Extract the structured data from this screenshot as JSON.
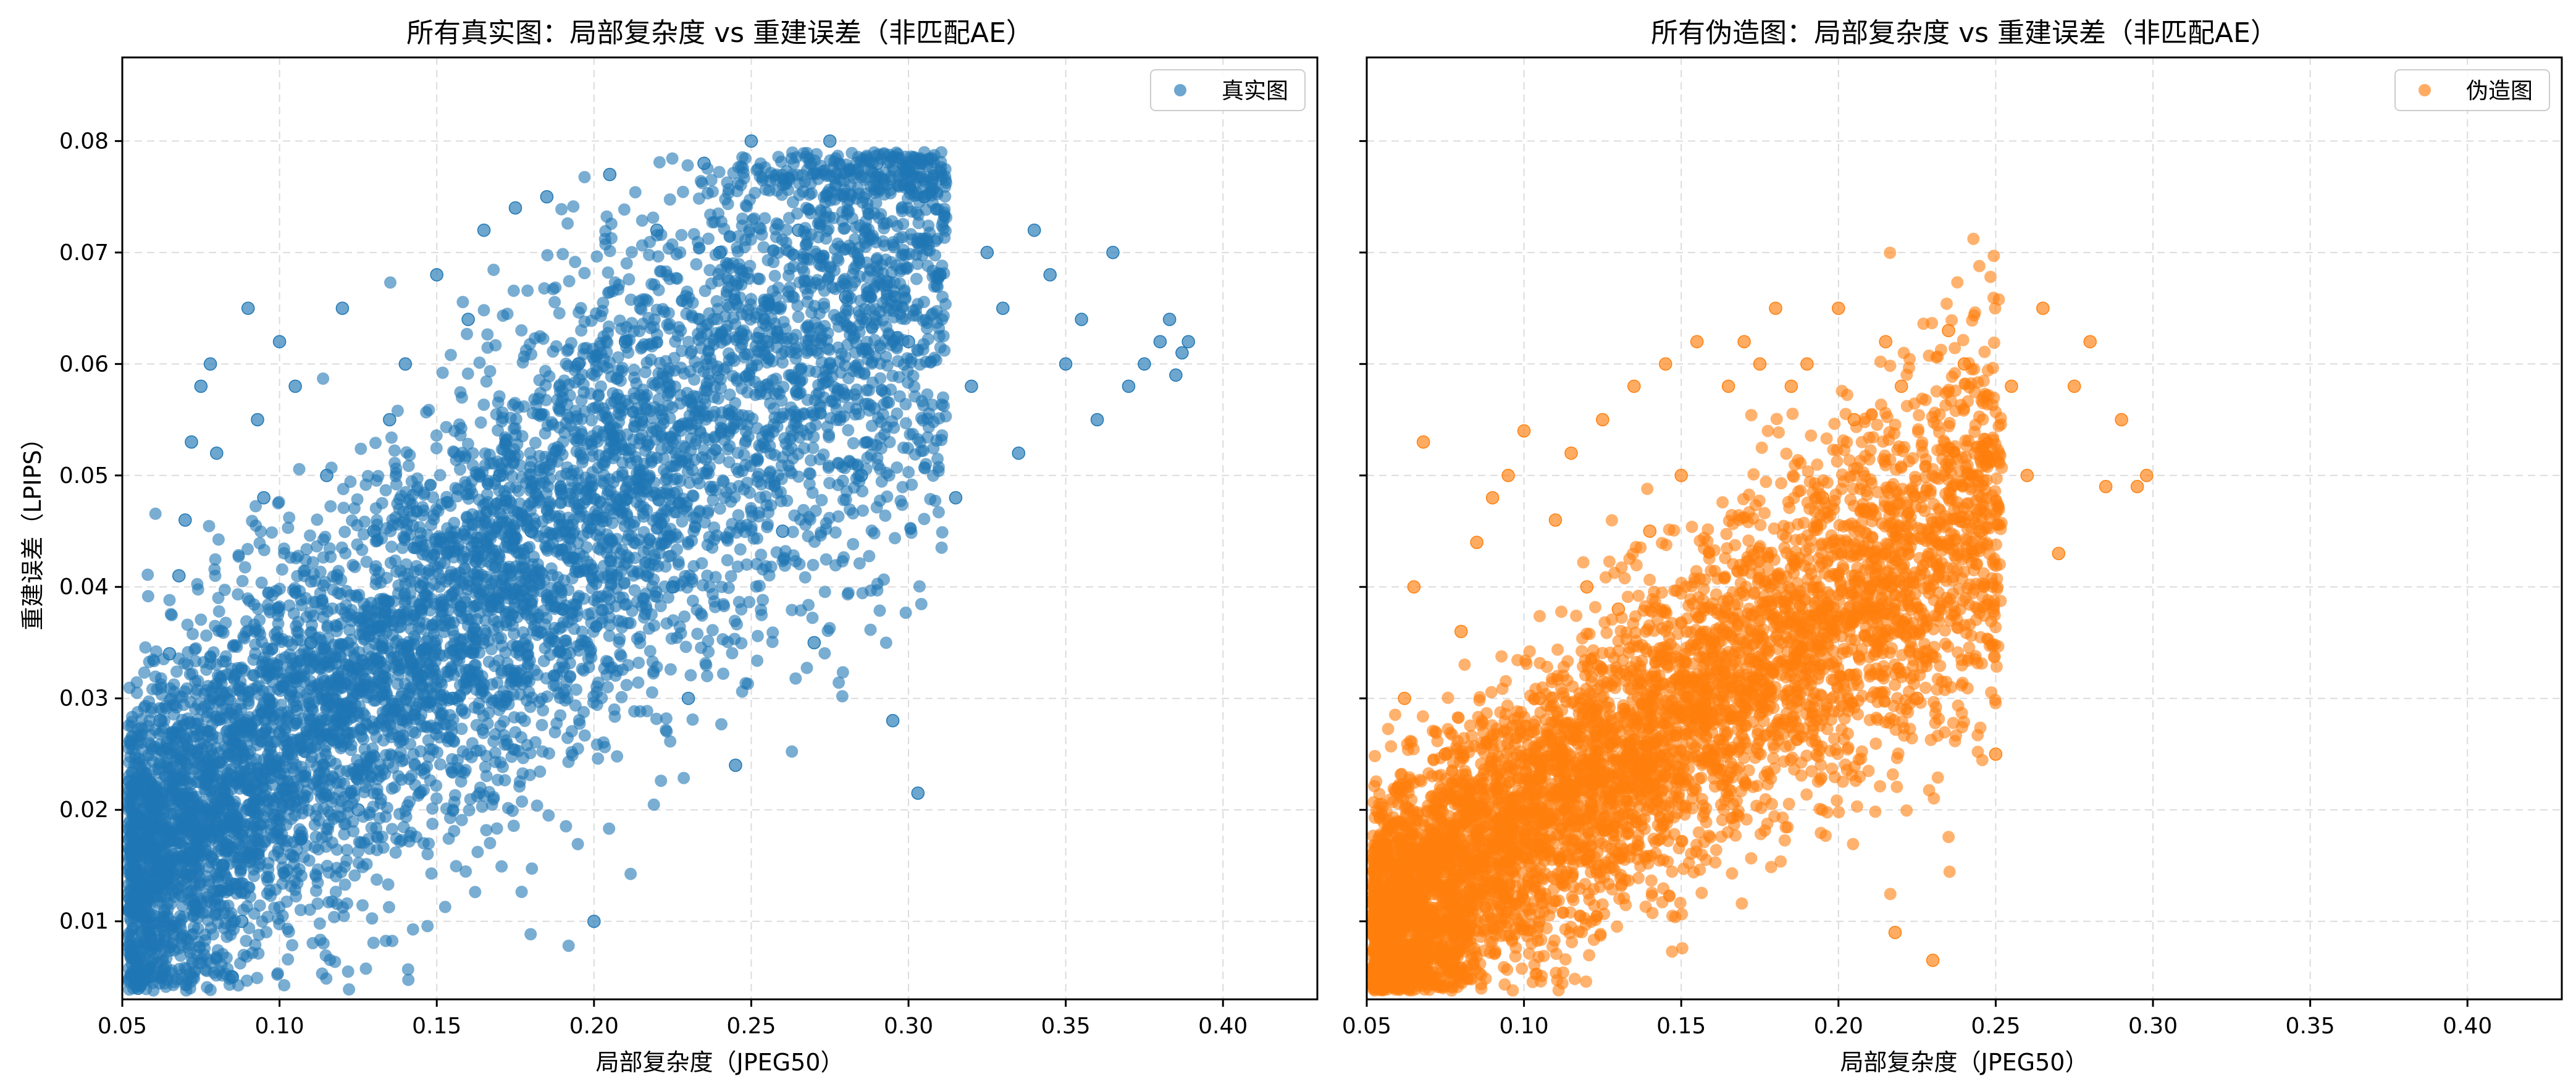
{
  "chart_data": [
    {
      "type": "scatter",
      "title": "所有真实图：局部复杂度 vs 重建误差（非匹配AE）",
      "xlabel": "局部复杂度（JPEG50）",
      "ylabel": "重建误差（LPIPS）",
      "xlim": [
        0.05,
        0.43
      ],
      "ylim": [
        0.003,
        0.0875
      ],
      "xticks": [
        "0.05",
        "0.10",
        "0.15",
        "0.20",
        "0.25",
        "0.30",
        "0.35",
        "0.40"
      ],
      "yticks": [
        "0.01",
        "0.02",
        "0.03",
        "0.04",
        "0.05",
        "0.06",
        "0.07",
        "0.08"
      ],
      "grid": true,
      "legend_position": "top-right",
      "series": [
        {
          "name": "真实图",
          "color": "#1f77b4",
          "points": [
            [
              0.055,
              0.004
            ],
            [
              0.058,
              0.012
            ],
            [
              0.06,
              0.02
            ],
            [
              0.062,
              0.028
            ],
            [
              0.065,
              0.034
            ],
            [
              0.068,
              0.041
            ],
            [
              0.07,
              0.046
            ],
            [
              0.072,
              0.053
            ],
            [
              0.075,
              0.058
            ],
            [
              0.078,
              0.06
            ],
            [
              0.08,
              0.052
            ],
            [
              0.082,
              0.015
            ],
            [
              0.085,
              0.005
            ],
            [
              0.088,
              0.01
            ],
            [
              0.09,
              0.065
            ],
            [
              0.093,
              0.055
            ],
            [
              0.095,
              0.048
            ],
            [
              0.1,
              0.062
            ],
            [
              0.105,
              0.058
            ],
            [
              0.11,
              0.035
            ],
            [
              0.115,
              0.05
            ],
            [
              0.12,
              0.065
            ],
            [
              0.125,
              0.02
            ],
            [
              0.13,
              0.045
            ],
            [
              0.135,
              0.055
            ],
            [
              0.14,
              0.06
            ],
            [
              0.145,
              0.04
            ],
            [
              0.15,
              0.068
            ],
            [
              0.155,
              0.03
            ],
            [
              0.16,
              0.064
            ],
            [
              0.165,
              0.072
            ],
            [
              0.17,
              0.05
            ],
            [
              0.175,
              0.074
            ],
            [
              0.18,
              0.045
            ],
            [
              0.185,
              0.075
            ],
            [
              0.19,
              0.038
            ],
            [
              0.195,
              0.06
            ],
            [
              0.2,
              0.01
            ],
            [
              0.205,
              0.077
            ],
            [
              0.21,
              0.062
            ],
            [
              0.215,
              0.055
            ],
            [
              0.22,
              0.072
            ],
            [
              0.225,
              0.04
            ],
            [
              0.23,
              0.03
            ],
            [
              0.235,
              0.078
            ],
            [
              0.24,
              0.07
            ],
            [
              0.245,
              0.024
            ],
            [
              0.25,
              0.08
            ],
            [
              0.255,
              0.062
            ],
            [
              0.26,
              0.045
            ],
            [
              0.265,
              0.072
            ],
            [
              0.27,
              0.035
            ],
            [
              0.275,
              0.08
            ],
            [
              0.28,
              0.066
            ],
            [
              0.285,
              0.05
            ],
            [
              0.29,
              0.078
            ],
            [
              0.295,
              0.028
            ],
            [
              0.3,
              0.062
            ],
            [
              0.303,
              0.0215
            ],
            [
              0.305,
              0.075
            ],
            [
              0.31,
              0.068
            ],
            [
              0.315,
              0.048
            ],
            [
              0.32,
              0.058
            ],
            [
              0.325,
              0.07
            ],
            [
              0.33,
              0.065
            ],
            [
              0.335,
              0.052
            ],
            [
              0.34,
              0.072
            ],
            [
              0.345,
              0.068
            ],
            [
              0.35,
              0.06
            ],
            [
              0.355,
              0.064
            ],
            [
              0.36,
              0.055
            ],
            [
              0.365,
              0.07
            ],
            [
              0.37,
              0.058
            ],
            [
              0.375,
              0.06
            ],
            [
              0.38,
              0.062
            ],
            [
              0.383,
              0.064
            ],
            [
              0.385,
              0.059
            ],
            [
              0.387,
              0.061
            ],
            [
              0.389,
              0.062
            ]
          ]
        }
      ]
    },
    {
      "type": "scatter",
      "title": "所有伪造图：局部复杂度 vs 重建误差（非匹配AE）",
      "xlabel": "局部复杂度（JPEG50）",
      "ylabel": "",
      "xlim": [
        0.05,
        0.43
      ],
      "ylim": [
        0.003,
        0.0875
      ],
      "xticks": [
        "0.05",
        "0.10",
        "0.15",
        "0.20",
        "0.25",
        "0.30",
        "0.35",
        "0.40"
      ],
      "yticks": [],
      "grid": true,
      "legend_position": "top-right",
      "series": [
        {
          "name": "伪造图",
          "color": "#ff7f0e",
          "points": [
            [
              0.055,
              0.005
            ],
            [
              0.058,
              0.012
            ],
            [
              0.06,
              0.022
            ],
            [
              0.062,
              0.03
            ],
            [
              0.065,
              0.04
            ],
            [
              0.068,
              0.053
            ],
            [
              0.07,
              0.009
            ],
            [
              0.072,
              0.016
            ],
            [
              0.075,
              0.025
            ],
            [
              0.08,
              0.036
            ],
            [
              0.085,
              0.044
            ],
            [
              0.09,
              0.048
            ],
            [
              0.095,
              0.05
            ],
            [
              0.1,
              0.054
            ],
            [
              0.105,
              0.03
            ],
            [
              0.11,
              0.046
            ],
            [
              0.115,
              0.052
            ],
            [
              0.12,
              0.04
            ],
            [
              0.125,
              0.055
            ],
            [
              0.13,
              0.038
            ],
            [
              0.135,
              0.058
            ],
            [
              0.14,
              0.045
            ],
            [
              0.145,
              0.06
            ],
            [
              0.15,
              0.05
            ],
            [
              0.155,
              0.062
            ],
            [
              0.16,
              0.035
            ],
            [
              0.165,
              0.058
            ],
            [
              0.17,
              0.062
            ],
            [
              0.175,
              0.06
            ],
            [
              0.18,
              0.065
            ],
            [
              0.185,
              0.058
            ],
            [
              0.19,
              0.06
            ],
            [
              0.195,
              0.048
            ],
            [
              0.2,
              0.065
            ],
            [
              0.205,
              0.055
            ],
            [
              0.21,
              0.04
            ],
            [
              0.215,
              0.062
            ],
            [
              0.218,
              0.009
            ],
            [
              0.22,
              0.058
            ],
            [
              0.225,
              0.03
            ],
            [
              0.23,
              0.0065
            ],
            [
              0.235,
              0.063
            ],
            [
              0.24,
              0.06
            ],
            [
              0.245,
              0.045
            ],
            [
              0.25,
              0.025
            ],
            [
              0.255,
              0.058
            ],
            [
              0.26,
              0.05
            ],
            [
              0.265,
              0.065
            ],
            [
              0.27,
              0.043
            ],
            [
              0.275,
              0.058
            ],
            [
              0.28,
              0.062
            ],
            [
              0.285,
              0.049
            ],
            [
              0.29,
              0.055
            ],
            [
              0.295,
              0.049
            ],
            [
              0.298,
              0.05
            ]
          ]
        }
      ]
    }
  ]
}
